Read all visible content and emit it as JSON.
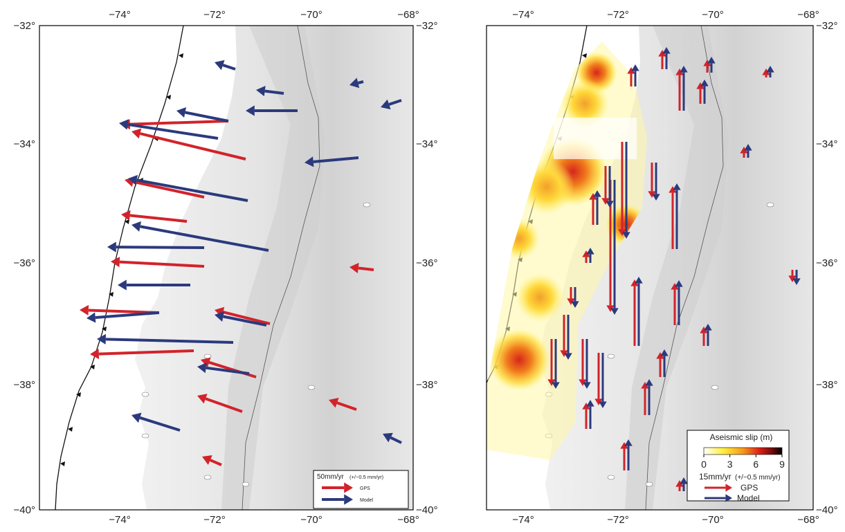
{
  "maps": [
    {
      "x_ticks": [
        "−74°",
        "−72°",
        "−70°",
        "−68°"
      ],
      "y_ticks": [
        "−32°",
        "−34°",
        "−36°",
        "−38°",
        "−40°"
      ],
      "legend": {
        "scale": "50mm/yr",
        "uncertainty": "(+/−0.5 mm/yr)",
        "gps": "GPS",
        "model": "Model"
      }
    },
    {
      "x_ticks": [
        "−74°",
        "−72°",
        "−70°",
        "−68°"
      ],
      "y_ticks": [
        "−32°",
        "−34°",
        "−36°",
        "−38°",
        "−40°"
      ],
      "colorbar": {
        "title": "Aseismic slip (m)",
        "range": [
          0,
          9
        ],
        "ticks": [
          0,
          3,
          6,
          9
        ]
      },
      "legend": {
        "scale": "15mm/yr",
        "uncertainty": "(+/−0.5 mm/yr)",
        "gps": "GPS",
        "model": "Model"
      }
    }
  ]
}
